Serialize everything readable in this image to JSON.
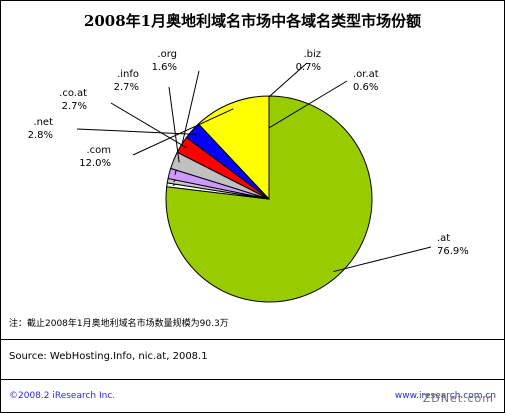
{
  "chart_data": {
    "type": "pie",
    "title": "2008年1月奥地利域名市场中各域名类型市场份额",
    "categories": [
      ".at",
      ".or.at",
      ".biz",
      ".org",
      ".info",
      ".co.at",
      ".net",
      ".com"
    ],
    "values": [
      76.9,
      0.6,
      0.7,
      1.6,
      2.7,
      2.7,
      2.8,
      12.0
    ],
    "labels": [
      "76.9%",
      "0.6%",
      "0.7%",
      "1.6%",
      "2.7%",
      "2.7%",
      "2.8%",
      "12.0%"
    ],
    "colors": [
      "#99CC00",
      "#FFFFFF",
      "#C9C9C9",
      "#CC99FF",
      "#C0C0C0",
      "#FF0000",
      "#0000FF",
      "#FFFF00"
    ]
  },
  "footer": {
    "note": "注：截止2008年1月奥地利域名市场数量规模为90.3万",
    "source": "Source: WebHosting.Info, nic.at, 2008.1",
    "copyright": "©2008.2 iResearch Inc.",
    "website": "www.iresearch.com.cn",
    "watermark": "ZDNet.com"
  }
}
